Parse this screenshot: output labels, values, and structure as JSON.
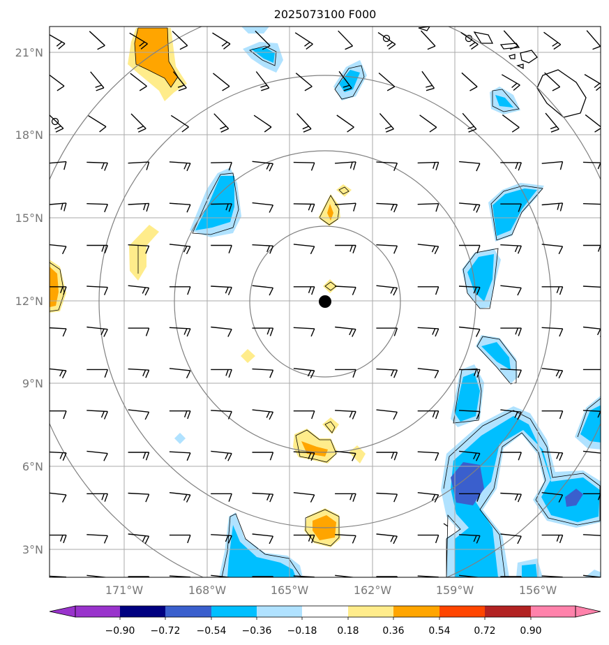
{
  "title": "2025073100 F000",
  "lat_labels": [
    "21°N",
    "18°N",
    "15°N",
    "12°N",
    "9°N",
    "6°N",
    "3°N"
  ],
  "lon_labels": [
    "171°W",
    "168°W",
    "165°W",
    "162°W",
    "159°W",
    "156°W"
  ],
  "colorbar": {
    "tick_labels": [
      "−0.90",
      "−0.72",
      "−0.54",
      "−0.36",
      "−0.18",
      "0.18",
      "0.36",
      "0.54",
      "0.72",
      "0.90"
    ],
    "colors": [
      "#9933cc",
      "#000080",
      "#3a5fcd",
      "#00bfff",
      "#b0e2ff",
      "#ffffff",
      "#ffec8b",
      "#ffa500",
      "#ff4500",
      "#b22222",
      "#ff82ab"
    ]
  },
  "colors": {
    "grid": "#aaaaaa",
    "range_rings": "#808080",
    "barbs": "#000000",
    "coast": "#000000"
  },
  "map": {
    "lon_range": [
      -173.7,
      -153.7
    ],
    "lat_range": [
      2.0,
      22.0
    ],
    "center": {
      "lon": -163.6,
      "lat": 12.0
    },
    "range_rings_deg": [
      2.75,
      5.5,
      8.25,
      11.0
    ]
  }
}
